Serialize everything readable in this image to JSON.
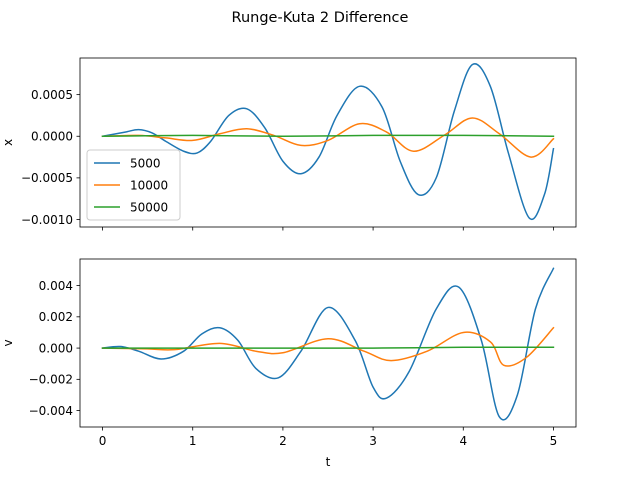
{
  "title": "Runge-Kuta 2 Difference",
  "chart_data": [
    {
      "type": "line",
      "title": "Runge-Kuta 2 Difference",
      "xlabel": "",
      "ylabel": "x",
      "xlim": [
        -0.25,
        5.25
      ],
      "ylim": [
        -0.00109,
        0.00094
      ],
      "xticks": [
        0,
        1,
        2,
        3,
        4,
        5
      ],
      "xtick_labels_visible": false,
      "yticks": [
        -0.001,
        -0.0005,
        0.0,
        0.0005
      ],
      "ytick_labels": [
        "−0.0010",
        "−0.0005",
        "0.0000",
        "0.0005"
      ],
      "legend": {
        "placement": "lower-left",
        "entries": [
          "5000",
          "10000",
          "50000"
        ]
      },
      "series": [
        {
          "name": "5000",
          "color": "#1f77b4",
          "x": [
            0,
            0.25,
            0.4,
            0.55,
            0.7,
            0.9,
            1.05,
            1.2,
            1.4,
            1.6,
            1.8,
            2.0,
            2.2,
            2.4,
            2.6,
            2.85,
            3.1,
            3.3,
            3.5,
            3.7,
            3.9,
            4.1,
            4.3,
            4.5,
            4.73,
            4.9,
            5.0
          ],
          "y": [
            0,
            5e-05,
            8e-05,
            4e-05,
            -6e-05,
            -0.00018,
            -0.0002,
            -6e-05,
            0.00025,
            0.00033,
            0.0001,
            -0.0003,
            -0.00045,
            -0.00025,
            0.00025,
            0.0006,
            0.00035,
            -0.0003,
            -0.0007,
            -0.0005,
            0.0003,
            0.00086,
            0.0006,
            -0.0002,
            -0.00098,
            -0.0007,
            -0.00015
          ]
        },
        {
          "name": "10000",
          "color": "#ff7f0e",
          "x": [
            0,
            0.4,
            0.7,
            1.0,
            1.3,
            1.6,
            1.9,
            2.2,
            2.5,
            2.85,
            3.15,
            3.45,
            3.8,
            4.1,
            4.4,
            4.75,
            5.0
          ],
          "y": [
            0,
            1e-05,
            -2e-05,
            -5e-05,
            3e-05,
            9e-05,
            1e-05,
            -0.00011,
            -5e-05,
            0.00015,
            5e-05,
            -0.00018,
            2e-05,
            0.00022,
            3e-05,
            -0.00025,
            -3e-05
          ]
        },
        {
          "name": "50000",
          "color": "#2ca02c",
          "x": [
            0,
            1,
            2,
            3,
            4,
            5
          ],
          "y": [
            0,
            1e-05,
            0.0,
            1e-05,
            1e-05,
            0.0
          ]
        }
      ]
    },
    {
      "type": "line",
      "xlabel": "t",
      "ylabel": "v",
      "xlim": [
        -0.25,
        5.25
      ],
      "ylim": [
        -0.00505,
        0.0057
      ],
      "xticks": [
        0,
        1,
        2,
        3,
        4,
        5
      ],
      "xtick_labels": [
        "0",
        "1",
        "2",
        "3",
        "4",
        "5"
      ],
      "yticks": [
        -0.004,
        -0.002,
        0.0,
        0.002,
        0.004
      ],
      "ytick_labels": [
        "−0.004",
        "−0.002",
        "0.000",
        "0.002",
        "0.004"
      ],
      "series": [
        {
          "name": "5000",
          "color": "#1f77b4",
          "x": [
            0,
            0.2,
            0.4,
            0.65,
            0.9,
            1.1,
            1.3,
            1.5,
            1.7,
            1.95,
            2.2,
            2.5,
            2.8,
            3.0,
            3.15,
            3.4,
            3.7,
            3.95,
            4.2,
            4.4,
            4.6,
            4.8,
            5.0
          ],
          "y": [
            0,
            0.0001,
            -0.0002,
            -0.0007,
            -0.0002,
            0.0009,
            0.0013,
            0.0005,
            -0.0013,
            -0.0019,
            -0.0002,
            0.0026,
            0.0005,
            -0.0025,
            -0.0032,
            -0.0015,
            0.0025,
            0.0039,
            0.0005,
            -0.0044,
            -0.003,
            0.0025,
            0.0051
          ]
        },
        {
          "name": "10000",
          "color": "#ff7f0e",
          "x": [
            0,
            0.5,
            0.8,
            1.3,
            1.7,
            2.0,
            2.5,
            2.9,
            3.2,
            3.6,
            4.0,
            4.3,
            4.45,
            4.7,
            5.0
          ],
          "y": [
            0,
            -5e-05,
            -0.0001,
            0.0003,
            -0.0002,
            -0.0003,
            0.0006,
            -0.0002,
            -0.0008,
            -0.0002,
            0.001,
            0.0004,
            -0.0011,
            -0.0006,
            0.0013
          ]
        },
        {
          "name": "50000",
          "color": "#2ca02c",
          "x": [
            0,
            1,
            2,
            3,
            4,
            5
          ],
          "y": [
            0,
            0.0,
            0.0,
            0.0,
            5e-05,
            5e-05
          ]
        }
      ]
    }
  ]
}
